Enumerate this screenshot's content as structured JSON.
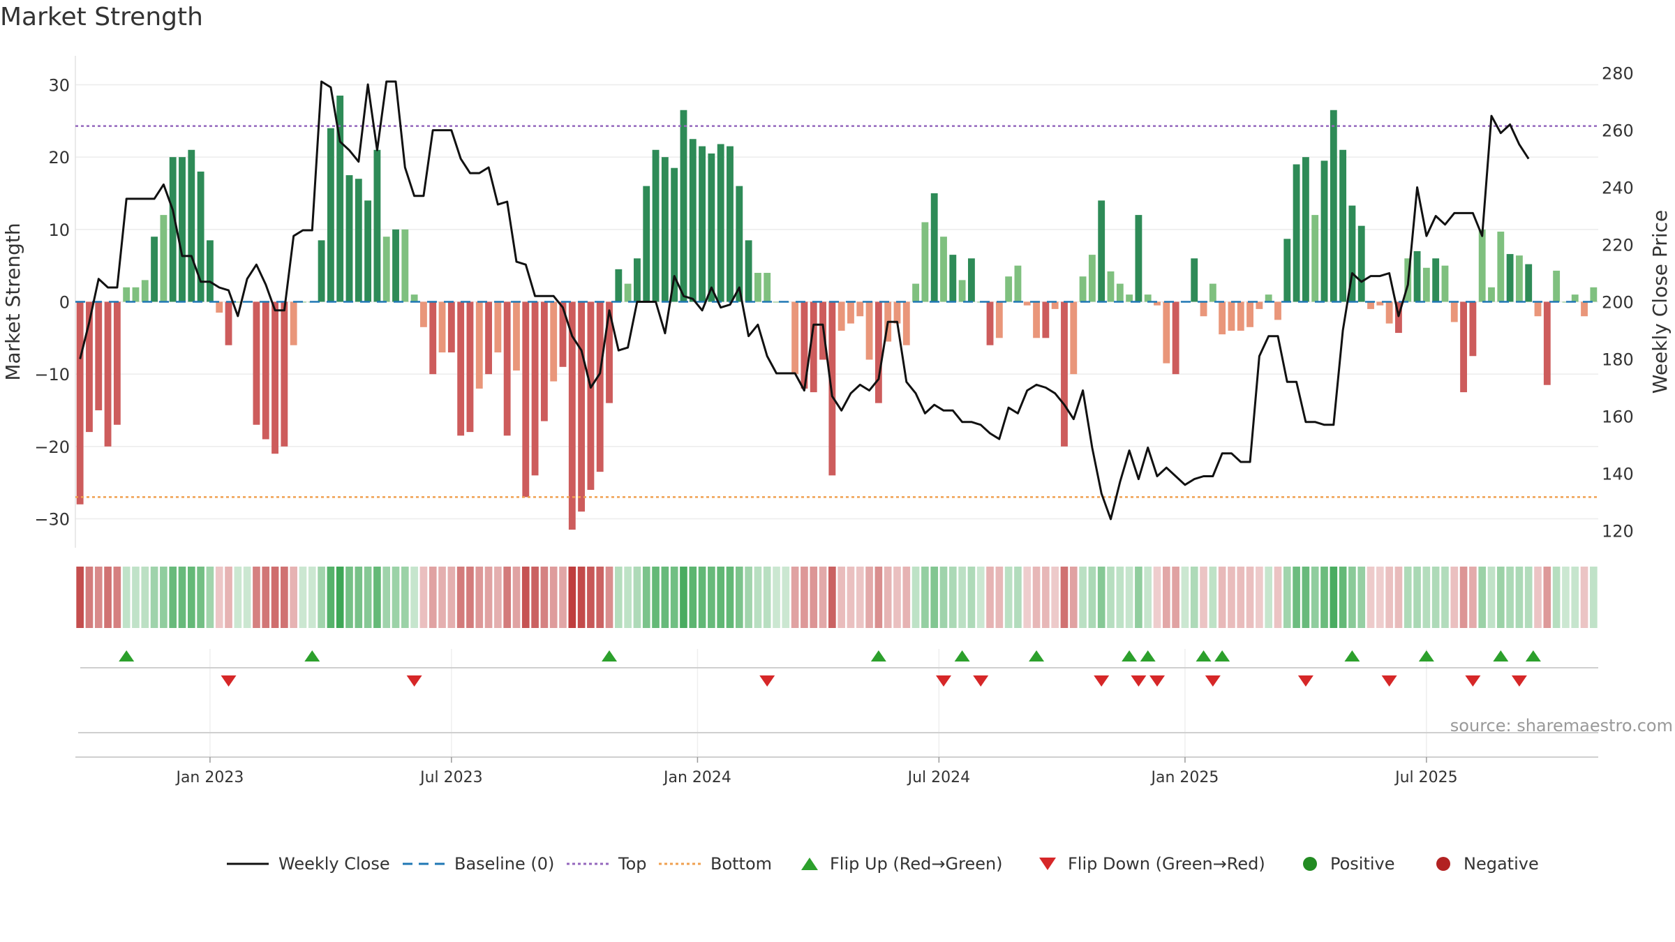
{
  "title": "Market Strength",
  "source": "source: sharemaestro.com",
  "colors": {
    "strong_green": "#2e8b57",
    "light_green": "#7fc07f",
    "strong_red": "#cd5c5c",
    "light_red": "#e9967a",
    "price_line": "#111111",
    "baseline": "#1f77b4",
    "top_line": "#9467bd",
    "bottom_line": "#f0a050",
    "flip_up": "#2ca02c",
    "flip_down": "#d62728",
    "positive": "#228b22",
    "negative": "#b22222"
  },
  "chart_data": {
    "type": "bar",
    "title": "Market Strength",
    "ylabel": "Market Strength",
    "y2label": "Weekly Close Price",
    "ylim": [
      -34,
      34
    ],
    "y2lim": [
      114,
      286
    ],
    "yticks": [
      30,
      20,
      10,
      0,
      -10,
      -20,
      -30
    ],
    "ytick_labels": [
      "30",
      "20",
      "10",
      "0",
      "−10",
      "−20",
      "−30"
    ],
    "y2ticks": [
      280,
      260,
      240,
      220,
      200,
      180,
      160,
      140,
      120
    ],
    "top_level": 24.3,
    "bottom_level": -27,
    "baseline": 0,
    "xticks": [
      {
        "label": "Jan 2023",
        "week": 14
      },
      {
        "label": "Jul 2023",
        "week": 40
      },
      {
        "label": "Jan 2024",
        "week": 66.5
      },
      {
        "label": "Jul 2024",
        "week": 92.5
      },
      {
        "label": "Jan 2025",
        "week": 119
      },
      {
        "label": "Jul 2025",
        "week": 145
      }
    ],
    "strength": [
      -28,
      -18,
      -15,
      -20,
      -17,
      2,
      2,
      3,
      9,
      12,
      20,
      20,
      21,
      18,
      8.5,
      -1.5,
      -6,
      0,
      0,
      -17,
      -19,
      -21,
      -20,
      -6,
      0,
      0,
      8.5,
      24,
      28.5,
      17.5,
      17,
      14,
      21,
      9,
      10,
      10,
      1,
      -3.5,
      -10,
      -7,
      -7,
      -18.5,
      -18,
      -12,
      -10,
      -7,
      -18.5,
      -9.5,
      -27,
      -24,
      -16.5,
      -11,
      -9,
      -31.5,
      -29,
      -26,
      -23.5,
      -14,
      4.5,
      2.5,
      6,
      16,
      21,
      20,
      18.5,
      26.5,
      22.5,
      21.5,
      20.5,
      21.8,
      21.5,
      16,
      8.5,
      4,
      4,
      0,
      0,
      -10,
      -12,
      -12.5,
      -8,
      -24,
      -4,
      -3,
      -2,
      -8,
      -14,
      -5.5,
      -3,
      -6,
      2.5,
      11,
      15,
      9,
      6.5,
      3,
      6,
      0,
      -6,
      -5,
      3.5,
      5,
      -0.5,
      -5,
      -5,
      -1,
      -20,
      -10,
      3.5,
      6.5,
      14,
      4.2,
      2.5,
      1,
      12,
      1,
      -0.5,
      -8.5,
      -10,
      0,
      6,
      -2,
      2.5,
      -4.5,
      -4,
      -4,
      -3.5,
      -1,
      1,
      -2.5,
      8.7,
      19,
      20,
      12,
      19.5,
      26.5,
      21,
      13.3,
      10.5,
      -1,
      -0.5,
      -3,
      -4.3,
      6,
      7,
      4.7,
      6,
      5,
      -2.8,
      -12.5,
      -7.5,
      10,
      2,
      9.7,
      6.6,
      6.4,
      5.2,
      -2,
      -11.5,
      4.3,
      0,
      1,
      -2,
      2
    ],
    "weekly_close": [
      180,
      193,
      208,
      205,
      205,
      236,
      236,
      236,
      236,
      241,
      232,
      216,
      216,
      207,
      207,
      205,
      204,
      195,
      208,
      213,
      206,
      197,
      197,
      223,
      225,
      225,
      277,
      275,
      256,
      253,
      249,
      276,
      253,
      277,
      277,
      247,
      237,
      237,
      260,
      260,
      260,
      250,
      245,
      245,
      247,
      234,
      235,
      214,
      213,
      202,
      202,
      202,
      198,
      188,
      183,
      170,
      175,
      197,
      183,
      184,
      200,
      200,
      200,
      189,
      209,
      202,
      201,
      197,
      205,
      198,
      199,
      205,
      188,
      192,
      181,
      175,
      175,
      175,
      169,
      192,
      192,
      167,
      162,
      168,
      171,
      169,
      173,
      193,
      193,
      172,
      168,
      161,
      164,
      162,
      162,
      158,
      158,
      157,
      154,
      152,
      163,
      161,
      169,
      171,
      170,
      168,
      164,
      159,
      169,
      149,
      133,
      124,
      137,
      148,
      138,
      149,
      139,
      142,
      139,
      136,
      138,
      139,
      139,
      147,
      147,
      144,
      144,
      181,
      188,
      188,
      172,
      172,
      158,
      158,
      157,
      157,
      190,
      210,
      207,
      209,
      209,
      210,
      195,
      206,
      240,
      223,
      230,
      227,
      231,
      231,
      231,
      223,
      265,
      259,
      262,
      255,
      250
    ],
    "flip_up_weeks": [
      5,
      25,
      57,
      86,
      95,
      103,
      113,
      115,
      121,
      123,
      137,
      145,
      153,
      156.5
    ],
    "flip_down_weeks": [
      16,
      36,
      74,
      93,
      97,
      110,
      114,
      116,
      122,
      132,
      141,
      150,
      155
    ],
    "series": [
      {
        "name": "Weekly Close",
        "style": "line"
      },
      {
        "name": "Baseline (0)",
        "style": "dashed"
      },
      {
        "name": "Top",
        "style": "dotted"
      },
      {
        "name": "Bottom",
        "style": "dotted"
      },
      {
        "name": "Flip Up (Red→Green)",
        "style": "marker-up"
      },
      {
        "name": "Flip Down (Green→Red)",
        "style": "marker-down"
      },
      {
        "name": "Positive",
        "style": "dot"
      },
      {
        "name": "Negative",
        "style": "dot"
      }
    ]
  },
  "legend": [
    {
      "key": "weekly_close",
      "label": "Weekly Close"
    },
    {
      "key": "baseline",
      "label": "Baseline (0)"
    },
    {
      "key": "top",
      "label": "Top"
    },
    {
      "key": "bottom",
      "label": "Bottom"
    },
    {
      "key": "flip_up",
      "label": "Flip Up (Red→Green)"
    },
    {
      "key": "flip_down",
      "label": "Flip Down (Green→Red)"
    },
    {
      "key": "positive",
      "label": "Positive"
    },
    {
      "key": "negative",
      "label": "Negative"
    }
  ]
}
